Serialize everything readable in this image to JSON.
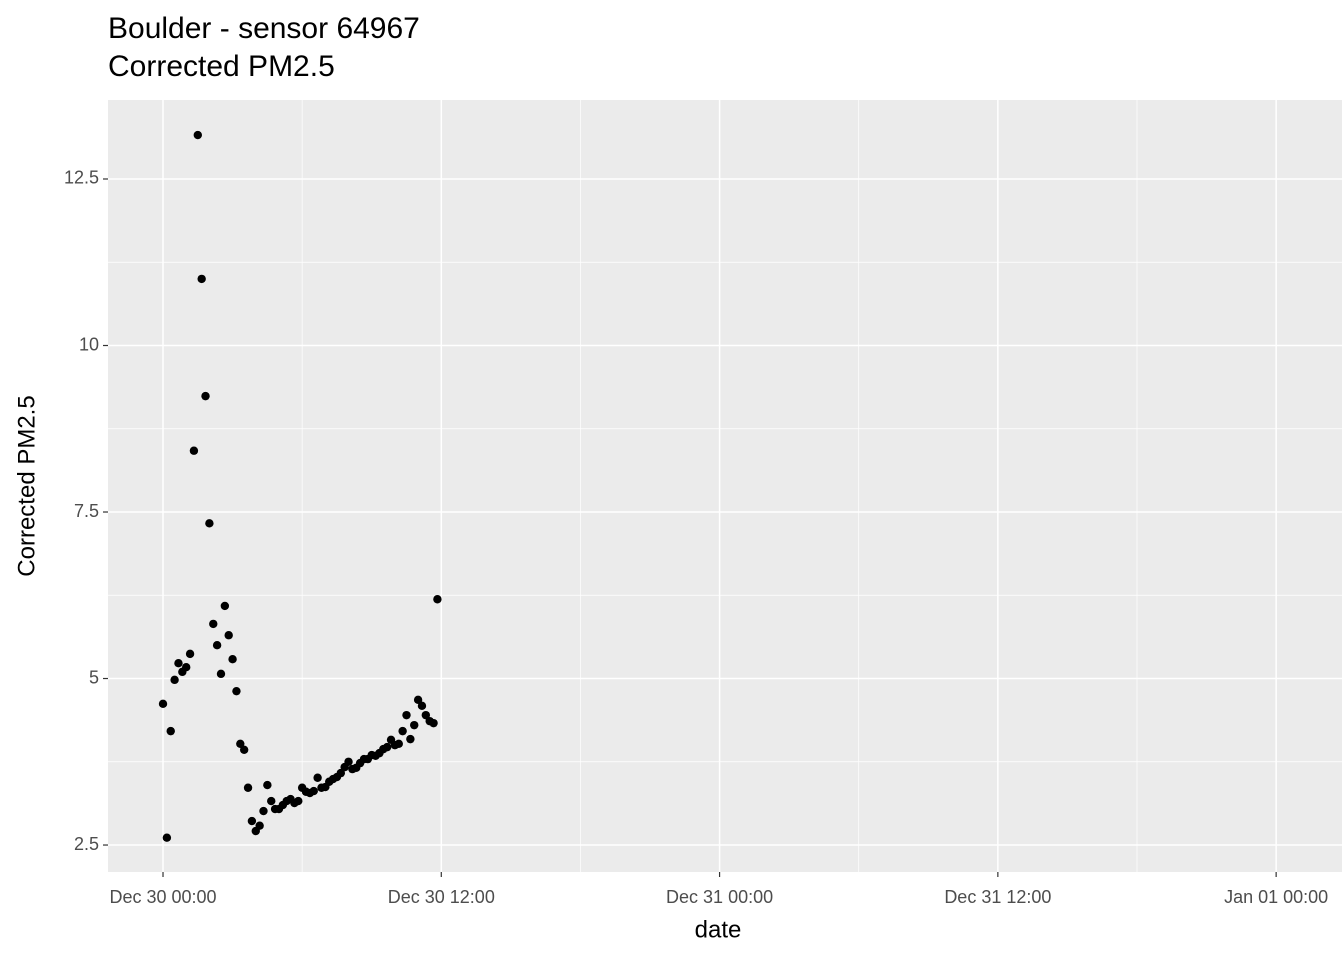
{
  "chart_data": {
    "type": "scatter",
    "title": "Boulder - sensor 64967",
    "subtitle": "Corrected PM2.5",
    "x_label": "date",
    "y_label": "Corrected PM2.5",
    "color": "#000000",
    "xlim": [
      -2.372,
      50.84
    ],
    "ylim": [
      2.095,
      13.686
    ],
    "xticks": [
      {
        "value": 0,
        "label": "Dec 30 00:00"
      },
      {
        "value": 12,
        "label": "Dec 30 12:00"
      },
      {
        "value": 24,
        "label": "Dec 31 00:00"
      },
      {
        "value": 36,
        "label": "Dec 31 12:00"
      },
      {
        "value": 48,
        "label": "Jan 01 00:00"
      }
    ],
    "yticks": [
      2.5,
      5,
      7.5,
      10,
      12.5
    ],
    "yticks_labels_note_free": null,
    "x_minor_grid": [
      6,
      18,
      30,
      42
    ],
    "y_minor_grid": [
      3.75,
      6.25,
      8.75,
      11.25
    ],
    "grid": true,
    "x": [
      0,
      0.167,
      0.333,
      0.5,
      0.667,
      0.833,
      1,
      1.167,
      1.333,
      1.5,
      1.667,
      1.833,
      2,
      2.167,
      2.333,
      2.5,
      2.667,
      2.833,
      3,
      3.167,
      3.333,
      3.5,
      3.667,
      3.833,
      4,
      4.167,
      4.333,
      4.5,
      4.667,
      4.833,
      5,
      5.167,
      5.333,
      5.5,
      5.667,
      5.833,
      6,
      6.167,
      6.333,
      6.5,
      6.667,
      6.833,
      7,
      7.167,
      7.333,
      7.5,
      7.667,
      7.833,
      8,
      8.167,
      8.333,
      8.5,
      8.667,
      8.833,
      9,
      9.167,
      9.333,
      9.5,
      9.667,
      9.833,
      10,
      10.167,
      10.333,
      10.5,
      10.667,
      10.833,
      11,
      11.167,
      11.333,
      11.5,
      11.667,
      11.833
    ],
    "values": [
      4.62,
      2.61,
      4.21,
      4.98,
      5.23,
      5.1,
      5.17,
      5.37,
      8.42,
      13.16,
      11.0,
      9.24,
      7.33,
      5.82,
      5.5,
      5.07,
      6.09,
      5.65,
      5.29,
      4.81,
      4.02,
      3.93,
      3.36,
      2.86,
      2.71,
      2.79,
      3.01,
      3.4,
      3.16,
      3.04,
      3.04,
      3.1,
      3.16,
      3.19,
      3.13,
      3.16,
      3.36,
      3.3,
      3.28,
      3.31,
      3.51,
      3.36,
      3.37,
      3.45,
      3.49,
      3.52,
      3.58,
      3.67,
      3.75,
      3.64,
      3.66,
      3.73,
      3.79,
      3.79,
      3.85,
      3.84,
      3.88,
      3.94,
      3.97,
      4.08,
      4.0,
      4.02,
      4.21,
      4.45,
      4.09,
      4.3,
      4.68,
      4.59,
      4.45,
      4.36,
      4.33,
      6.19
    ]
  }
}
